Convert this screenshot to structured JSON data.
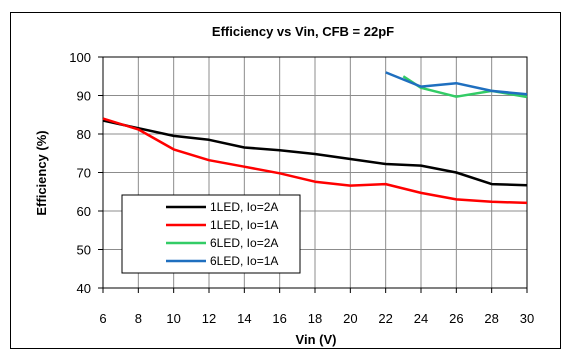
{
  "chart_data": {
    "type": "line",
    "title": "Efficiency vs Vin, CFB = 22pF",
    "xlabel": "Vin (V)",
    "ylabel": "Efficiency (%)",
    "xlim": [
      6,
      30
    ],
    "ylim": [
      40,
      100
    ],
    "x_ticks": [
      6,
      8,
      10,
      12,
      14,
      16,
      18,
      20,
      22,
      24,
      26,
      28,
      30
    ],
    "y_ticks": [
      40,
      50,
      60,
      70,
      80,
      90,
      100
    ],
    "grid": true,
    "legend_position": "bottom-left",
    "series": [
      {
        "name": "1LED, Io=2A",
        "color": "#000000",
        "points": [
          [
            6,
            83.5
          ],
          [
            8,
            81.5
          ],
          [
            10,
            79.5
          ],
          [
            12,
            78.5
          ],
          [
            14,
            76.5
          ],
          [
            16,
            75.8
          ],
          [
            18,
            74.8
          ],
          [
            20,
            73.5
          ],
          [
            22,
            72.2
          ],
          [
            24,
            71.8
          ],
          [
            26,
            70.0
          ],
          [
            28,
            67.0
          ],
          [
            30,
            66.7
          ]
        ]
      },
      {
        "name": "1LED, Io=1A",
        "color": "#ff0000",
        "points": [
          [
            6,
            84.0
          ],
          [
            8,
            81.2
          ],
          [
            10,
            76.0
          ],
          [
            12,
            73.2
          ],
          [
            14,
            71.5
          ],
          [
            16,
            69.8
          ],
          [
            18,
            67.6
          ],
          [
            20,
            66.6
          ],
          [
            22,
            67.0
          ],
          [
            24,
            64.7
          ],
          [
            26,
            63.0
          ],
          [
            28,
            62.4
          ],
          [
            30,
            62.1
          ]
        ]
      },
      {
        "name": "6LED, Io=2A",
        "color": "#33cc66",
        "points": [
          [
            23,
            95.0
          ],
          [
            24,
            92.0
          ],
          [
            26,
            89.7
          ],
          [
            28,
            91.2
          ],
          [
            30,
            89.6
          ]
        ]
      },
      {
        "name": "6LED, Io=1A",
        "color": "#1f6fbf",
        "points": [
          [
            22,
            96.0
          ],
          [
            24,
            92.3
          ],
          [
            26,
            93.2
          ],
          [
            28,
            91.2
          ],
          [
            30,
            90.3
          ]
        ]
      }
    ]
  }
}
